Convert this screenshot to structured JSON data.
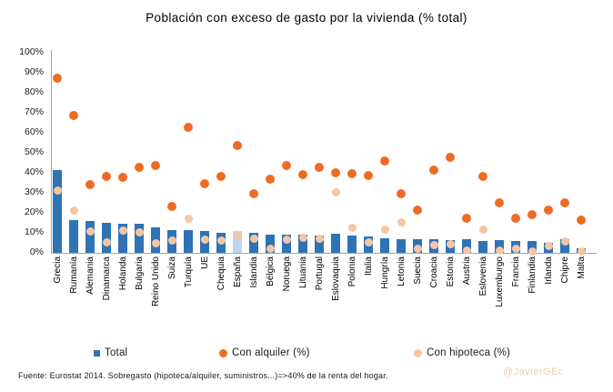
{
  "title": "Población con exceso de gasto por la vivienda (% total)",
  "legend": {
    "total": "Total",
    "alquiler": "Con alquiler (%)",
    "hipoteca": "Con hipoteca (%)"
  },
  "footer": "Fuente: Eurostat 2014. Sobregasto (hipoteca/alquiler, suministros...)=>40% de la renta del hogar.",
  "watermark": "@JavierGEc",
  "colors": {
    "bar": "#2e74b5",
    "bar_highlight": "#bdd7ee",
    "alquiler": "#ed6c24",
    "hipoteca": "#f6c5a4",
    "axis": "#a6a6a6",
    "watermark": "#eed0ae"
  },
  "chart_data": {
    "type": "bar",
    "subtype": "bar-with-scatter-overlay",
    "title": "Población con exceso de gasto por la vivienda (% total)",
    "xlabel": "",
    "ylabel": "",
    "ylim": [
      0,
      100
    ],
    "ytick_step": 10,
    "ytick_format": "percent",
    "grid": false,
    "legend_position": "bottom",
    "highlighted_category": "España",
    "categories": [
      "Grecia",
      "Rumanía",
      "Alemania",
      "Dinamarca",
      "Holanda",
      "Bulgaria",
      "Reino Unido",
      "Suiza",
      "Turquía",
      "UE",
      "Chequia",
      "España",
      "Islandia",
      "Bélgica",
      "Noruega",
      "Lituania",
      "Portugal",
      "Eslovaquia",
      "Polonia",
      "Italia",
      "Hungría",
      "Letonia",
      "Suecia",
      "Croacia",
      "Estonia",
      "Austria",
      "Eslovenia",
      "Luxemburgo",
      "Francia",
      "Finlandia",
      "Irlanda",
      "Chipre",
      "Malta"
    ],
    "series": [
      {
        "name": "Total",
        "render": "bar",
        "values": [
          41,
          16,
          15.5,
          15,
          14.5,
          14.5,
          12.5,
          11,
          11,
          10.5,
          10,
          10.5,
          10,
          9,
          9,
          9,
          8.5,
          9.5,
          8.5,
          8,
          7,
          6.5,
          6.5,
          6.5,
          6,
          6.5,
          5.5,
          6,
          5.5,
          5.5,
          5,
          6.5,
          2
        ]
      },
      {
        "name": "Con alquiler (%)",
        "render": "scatter",
        "values": [
          87,
          68.5,
          34,
          38,
          37.5,
          42.5,
          43.5,
          23,
          62.5,
          34.5,
          38,
          53.5,
          29.5,
          36.5,
          43.5,
          39,
          42.5,
          40,
          39.5,
          38.5,
          45.5,
          29.5,
          21,
          41,
          47.5,
          17,
          38,
          25,
          17,
          19,
          21,
          25,
          16
        ]
      },
      {
        "name": "Con hipoteca (%)",
        "render": "scatter",
        "values": [
          31,
          21,
          10.5,
          5,
          11,
          10,
          4.5,
          6,
          17,
          6.5,
          6,
          8,
          7,
          2,
          6.5,
          7.5,
          7,
          30,
          12.5,
          5,
          11.5,
          15,
          2,
          3.5,
          4,
          1,
          11.5,
          1,
          2,
          0.5,
          3,
          5.5,
          0.5
        ]
      }
    ]
  }
}
